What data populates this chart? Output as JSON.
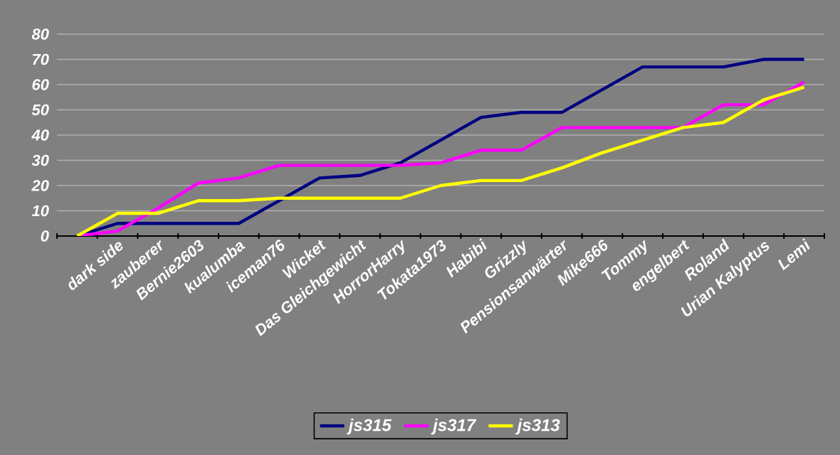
{
  "chart_data": {
    "type": "line",
    "categories": [
      null,
      "dark side",
      "zauberer",
      "Bernie2603",
      "kualumba",
      "iceman76",
      "Wicket",
      "Das Gleichgewicht",
      "HorrorHarry",
      "Tokata1973",
      "Habibi",
      "Grizzly",
      "Pensionsanwärter",
      "Mike666",
      "Tommy",
      "engelbert",
      "Roland",
      "Urian Kalyptus",
      "Lemi"
    ],
    "series": [
      {
        "name": "js315",
        "color": "#000080",
        "values": [
          0,
          5,
          5,
          5,
          5,
          14,
          23,
          24,
          29,
          38,
          47,
          49,
          49,
          58,
          67,
          67,
          67,
          70,
          70
        ]
      },
      {
        "name": "js317",
        "color": "#ff00ff",
        "values": [
          0,
          2,
          11,
          21,
          23,
          28,
          28,
          28,
          28,
          29,
          34,
          34,
          43,
          43,
          43,
          43,
          52,
          52,
          61
        ]
      },
      {
        "name": "js313",
        "color": "#ffff00",
        "values": [
          0,
          9,
          9,
          14,
          14,
          15,
          15,
          15,
          15,
          20,
          22,
          22,
          27,
          33,
          38,
          43,
          45,
          54,
          59
        ]
      }
    ],
    "ylim": [
      0,
      80
    ],
    "yticks": [
      0,
      10,
      20,
      30,
      40,
      50,
      60,
      70,
      80
    ],
    "grid": "y",
    "legend": "bottom",
    "marker": "none",
    "line_style": "solid"
  }
}
